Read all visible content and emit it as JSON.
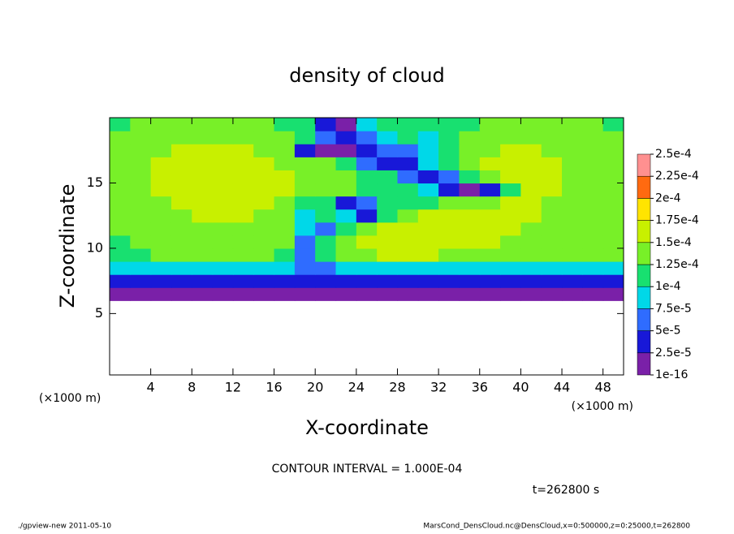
{
  "chart_data": {
    "type": "heatmap",
    "title": "density of cloud",
    "x_label": "X-coordinate",
    "y_label": "Z-coordinate",
    "x_unit_left": "(×1000 m)",
    "x_unit_right": "(×1000 m)",
    "contour_note": "CONTOUR INTERVAL = 1.000E-04",
    "time_note": "t=262800 s",
    "footer_left": "./gpview-new  2011-05-10",
    "footer_right": "MarsCond_DensCloud.nc@DensCloud,x=0:500000,z=0:25000,t=262800",
    "xlim": [
      0,
      50
    ],
    "ylim": [
      0.3,
      20
    ],
    "xticks": [
      4,
      8,
      12,
      16,
      20,
      24,
      28,
      32,
      36,
      40,
      44,
      48
    ],
    "yticks": [
      5,
      10,
      15
    ],
    "x": [
      1,
      3,
      5,
      7,
      9,
      11,
      13,
      15,
      17,
      19,
      21,
      23,
      25,
      27,
      29,
      31,
      33,
      35,
      37,
      39,
      41,
      43,
      45,
      47,
      49
    ],
    "z": [
      6.5,
      7.5,
      8.5,
      9.5,
      10.5,
      11.5,
      12.5,
      13.5,
      14.5,
      15.5,
      16.5,
      17.5,
      18.5,
      19.5
    ],
    "levels": [
      1e-16,
      {
        "value": 2.5e-05,
        "label": "2.5e-5"
      },
      {
        "value": 5e-05,
        "label": "5e-5"
      },
      {
        "value": 7.5e-05,
        "label": "7.5e-5"
      },
      {
        "value": 0.0001,
        "label": "1e-4"
      },
      {
        "value": 0.000125,
        "label": "1.25e-4"
      },
      {
        "value": 0.00015,
        "label": "1.5e-4"
      },
      {
        "value": 0.000175,
        "label": "1.75e-4"
      },
      {
        "value": 0.0002,
        "label": "2e-4"
      },
      {
        "value": 0.000225,
        "label": "2.25e-4"
      },
      {
        "value": 0.00025,
        "label": "2.5e-4"
      }
    ],
    "colors": [
      "#7a20a8",
      "#1818d8",
      "#2f6cff",
      "#00d8e8",
      "#18e070",
      "#78f028",
      "#c8f000",
      "#ffe400",
      "#ff6a10",
      "#ff9090"
    ],
    "values": [
      [
        1e-05,
        1e-05,
        1e-05,
        1e-05,
        1e-05,
        1e-05,
        1e-05,
        1e-05,
        1e-05,
        1e-05,
        1e-05,
        1e-05,
        1e-05,
        1e-05,
        1e-05,
        1e-05,
        1e-05,
        1e-05,
        1e-05,
        1e-05,
        1e-05,
        1e-05,
        1e-05,
        1e-05,
        1e-05
      ],
      [
        4e-05,
        4.5e-05,
        4e-05,
        4.5e-05,
        4e-05,
        4.5e-05,
        4e-05,
        4.5e-05,
        4e-05,
        3e-05,
        3e-05,
        4e-05,
        4e-05,
        4e-05,
        3e-05,
        3e-05,
        3e-05,
        3e-05,
        3.5e-05,
        3.5e-05,
        3.5e-05,
        3.5e-05,
        3.5e-05,
        3.5e-05,
        4e-05
      ],
      [
        9.5e-05,
        9.5e-05,
        9.5e-05,
        9.5e-05,
        9.5e-05,
        9.5e-05,
        9e-05,
        9.5e-05,
        9e-05,
        5e-05,
        7e-05,
        9.5e-05,
        9.5e-05,
        9.5e-05,
        9e-05,
        9.5e-05,
        9.5e-05,
        9.5e-05,
        9.5e-05,
        9.5e-05,
        9.5e-05,
        9.5e-05,
        9.5e-05,
        9.5e-05,
        9.5e-05
      ],
      [
        0.000115,
        0.00012,
        0.000125,
        0.00013,
        0.00013,
        0.00013,
        0.00013,
        0.00013,
        0.00012,
        6e-05,
        0.00011,
        0.00013,
        0.00014,
        0.00015,
        0.00015,
        0.00015,
        0.000145,
        0.000145,
        0.00014,
        0.00014,
        0.00014,
        0.000135,
        0.000135,
        0.00013,
        0.000125
      ],
      [
        0.00012,
        0.000125,
        0.00013,
        0.000135,
        0.00014,
        0.00014,
        0.00014,
        0.000135,
        0.00013,
        7e-05,
        0.00012,
        0.00014,
        0.00015,
        0.00016,
        0.00016,
        0.00016,
        0.000155,
        0.00015,
        0.00015,
        0.000145,
        0.000145,
        0.00014,
        0.00014,
        0.000135,
        0.00013
      ],
      [
        0.000125,
        0.00013,
        0.000135,
        0.00014,
        0.000145,
        0.000145,
        0.000145,
        0.00014,
        0.000135,
        8e-05,
        7e-05,
        0.00012,
        0.00013,
        0.00015,
        0.00016,
        0.00016,
        0.000155,
        0.00015,
        0.00015,
        0.00015,
        0.000145,
        0.000145,
        0.00014,
        0.000135,
        0.00013
      ],
      [
        0.00013,
        0.000135,
        0.00014,
        0.000145,
        0.00015,
        0.00015,
        0.00015,
        0.000145,
        0.00014,
        9e-05,
        0.00011,
        8e-05,
        3e-05,
        0.00012,
        0.00014,
        0.00015,
        0.00015,
        0.00015,
        0.00015,
        0.00015,
        0.00015,
        0.000145,
        0.00014,
        0.00014,
        0.000135
      ],
      [
        0.000135,
        0.00014,
        0.000145,
        0.00015,
        0.000155,
        0.000155,
        0.000155,
        0.00015,
        0.000145,
        0.00011,
        0.0001,
        4e-05,
        7e-05,
        0.00011,
        0.00011,
        0.00012,
        0.00013,
        0.00014,
        0.000145,
        0.00015,
        0.00015,
        0.000145,
        0.000145,
        0.00014,
        0.000135
      ],
      [
        0.00014,
        0.000145,
        0.00015,
        0.000155,
        0.00016,
        0.00016,
        0.00016,
        0.000155,
        0.00015,
        0.000145,
        0.000145,
        0.00014,
        0.00012,
        0.00011,
        0.0001,
        8e-05,
        4e-05,
        2e-05,
        3e-05,
        0.00012,
        0.00015,
        0.00015,
        0.000145,
        0.00014,
        0.00014
      ],
      [
        0.00014,
        0.000145,
        0.00015,
        0.00016,
        0.00016,
        0.00016,
        0.00016,
        0.000155,
        0.00015,
        0.000145,
        0.00014,
        0.00013,
        0.00012,
        0.0001,
        7e-05,
        3e-05,
        6e-05,
        0.0001,
        0.00013,
        0.00015,
        0.00015,
        0.00015,
        0.000145,
        0.00014,
        0.00014
      ],
      [
        0.00014,
        0.000145,
        0.00015,
        0.000155,
        0.00016,
        0.00016,
        0.000155,
        0.00015,
        0.000145,
        0.00014,
        0.00013,
        0.0001,
        6e-05,
        3e-05,
        4e-05,
        8e-05,
        0.00011,
        0.00013,
        0.00015,
        0.00015,
        0.00015,
        0.00015,
        0.000145,
        0.00014,
        0.00014
      ],
      [
        0.000135,
        0.00014,
        0.000145,
        0.00015,
        0.00015,
        0.00015,
        0.00015,
        0.000145,
        0.00014,
        3e-05,
        2e-05,
        2e-05,
        4e-05,
        5e-05,
        7e-05,
        9e-05,
        0.00011,
        0.00013,
        0.000145,
        0.00015,
        0.00015,
        0.000145,
        0.000145,
        0.00014,
        0.000135
      ],
      [
        0.00013,
        0.000135,
        0.00014,
        0.00014,
        0.00014,
        0.00014,
        0.00014,
        0.000135,
        0.00013,
        0.0001,
        5e-05,
        3e-05,
        6e-05,
        9e-05,
        0.0001,
        9e-05,
        0.00011,
        0.00013,
        0.00014,
        0.00014,
        0.00014,
        0.00014,
        0.00014,
        0.000135,
        0.00013
      ],
      [
        0.00012,
        0.000125,
        0.00013,
        0.00013,
        0.00013,
        0.00013,
        0.00013,
        0.00013,
        0.00012,
        0.0001,
        4e-05,
        2e-05,
        8e-05,
        0.0001,
        0.00011,
        0.0001,
        0.00011,
        0.00012,
        0.00013,
        0.00013,
        0.00013,
        0.00013,
        0.00013,
        0.00013,
        0.00012
      ]
    ]
  }
}
